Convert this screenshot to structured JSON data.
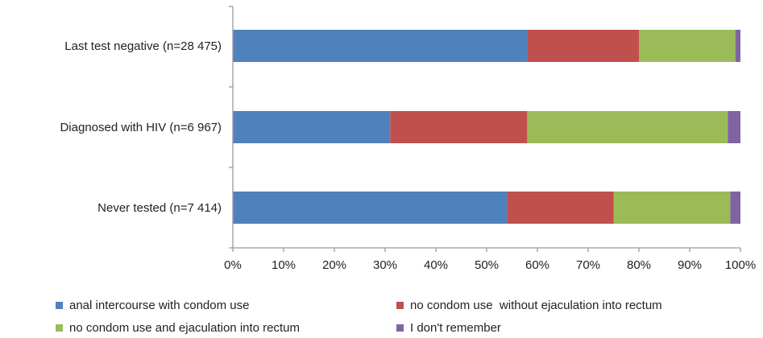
{
  "chart_data": {
    "type": "bar",
    "orientation": "horizontal",
    "stacked": true,
    "categories": [
      "Last test negative (n=28 475)",
      "Diagnosed with HIV (n=6 967)",
      "Never tested (n=7 414)"
    ],
    "series": [
      {
        "name": "anal intercourse with condom use",
        "color": "#4f81bd",
        "values": [
          58,
          31,
          54
        ]
      },
      {
        "name": "no condom use  without ejaculation into rectum",
        "color": "#c0504d",
        "values": [
          22,
          27,
          21
        ]
      },
      {
        "name": "no condom use and ejaculation into rectum",
        "color": "#9bbb59",
        "values": [
          19,
          39.5,
          23
        ]
      },
      {
        "name": "I don't remember",
        "color": "#8064a2",
        "values": [
          1,
          2.5,
          2
        ]
      }
    ],
    "xlim": [
      0,
      100
    ],
    "x_ticks": [
      "0%",
      "10%",
      "20%",
      "30%",
      "40%",
      "50%",
      "60%",
      "70%",
      "80%",
      "90%",
      "100%"
    ],
    "legend_position": "bottom",
    "grid": false
  }
}
